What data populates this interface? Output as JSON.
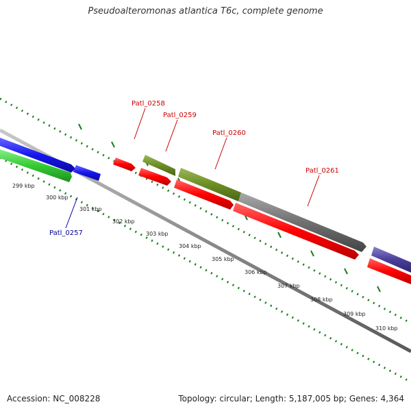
{
  "title": "Pseudoalteromonas atlantica T6c, complete genome",
  "footer": {
    "accession": "Accession: NC_008228",
    "summary": "Topology: circular; Length: 5,187,005 bp; Genes: 4,364"
  },
  "colors": {
    "label_red": "#cc0000",
    "label_blue": "#000099",
    "tick_green": "#1a7a1a",
    "backbone": "#8a8a8a",
    "gene_red": "#ff0000",
    "gene_blue": "#1515ee",
    "gene_green": "#33cc33",
    "gene_olive": "#6b8e23",
    "gene_gray": "#666666",
    "gene_purple": "#4a3f99"
  },
  "kbp_labels": [
    "299 kbp",
    "300 kbp",
    "301 kbp",
    "302 kbp",
    "303 kbp",
    "304 kbp",
    "305 kbp",
    "306 kbp",
    "307 kbp",
    "308 kbp",
    "309 kbp",
    "310 kbp"
  ],
  "gene_labels": {
    "patl_0257": "Patl_0257",
    "patl_0258": "Patl_0258",
    "patl_0259": "Patl_0259",
    "patl_0260": "Patl_0260",
    "patl_0261": "Patl_0261"
  }
}
